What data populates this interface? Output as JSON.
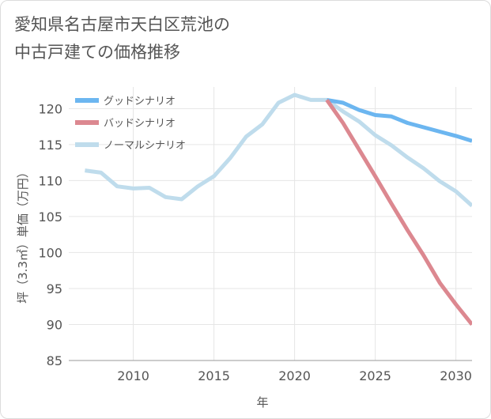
{
  "title_lines": [
    "愛知県名古屋市天白区荒池の",
    "中古戸建ての価格推移"
  ],
  "chart_data": {
    "type": "line",
    "xlabel": "年",
    "ylabel": "坪（3.3㎡）単価（万円）",
    "xlim": [
      2006,
      2031
    ],
    "ylim": [
      85,
      123
    ],
    "xticks": [
      2010,
      2015,
      2020,
      2025,
      2030
    ],
    "yticks": [
      85,
      90,
      95,
      100,
      105,
      110,
      115,
      120
    ],
    "grid": true,
    "legend_position": "top-left",
    "series": [
      {
        "name": "グッドシナリオ",
        "color": "#6cb6f0",
        "x": [
          2022,
          2023,
          2024,
          2025,
          2026,
          2027,
          2028,
          2029,
          2030,
          2031
        ],
        "y": [
          121.2,
          120.8,
          119.8,
          119.1,
          118.9,
          118.0,
          117.4,
          116.8,
          116.2,
          115.5
        ]
      },
      {
        "name": "バッドシナリオ",
        "color": "#dc8890",
        "x": [
          2022,
          2023,
          2024,
          2025,
          2026,
          2027,
          2028,
          2029,
          2030,
          2031
        ],
        "y": [
          121.2,
          118.0,
          114.3,
          110.6,
          106.8,
          103.1,
          99.6,
          95.8,
          92.8,
          90.0
        ]
      },
      {
        "name": "ノーマルシナリオ",
        "color": "#bfdcec",
        "x": [
          2007,
          2008,
          2009,
          2010,
          2011,
          2012,
          2013,
          2014,
          2015,
          2016,
          2017,
          2018,
          2019,
          2020,
          2021,
          2022,
          2023,
          2024,
          2025,
          2026,
          2027,
          2028,
          2029,
          2030,
          2031
        ],
        "y": [
          111.4,
          111.1,
          109.2,
          108.9,
          109.0,
          107.7,
          107.4,
          109.2,
          110.6,
          113.1,
          116.1,
          117.8,
          120.8,
          121.9,
          121.2,
          121.2,
          119.6,
          118.2,
          116.3,
          114.9,
          113.2,
          111.7,
          109.9,
          108.5,
          106.5
        ]
      }
    ]
  }
}
